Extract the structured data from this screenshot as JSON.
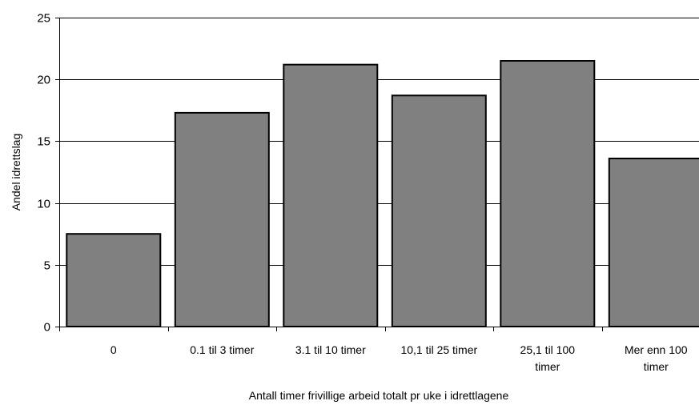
{
  "chart_data": {
    "type": "bar",
    "categories": [
      "0",
      "0.1 til 3 timer",
      "3.1 til 10 timer",
      "10,1 til 25 timer",
      "25,1 til 100 timer",
      "Mer enn 100 timer"
    ],
    "category_lines": [
      [
        "0"
      ],
      [
        "0.1 til 3 timer"
      ],
      [
        "3.1 til 10 timer"
      ],
      [
        "10,1 til 25 timer"
      ],
      [
        "25,1 til 100",
        "timer"
      ],
      [
        "Mer enn 100",
        "timer"
      ]
    ],
    "values": [
      7.5,
      17.3,
      21.2,
      18.7,
      21.5,
      13.6
    ],
    "xlabel": "Antall timer frivillige arbeid totalt pr uke i idrettlagene",
    "ylabel": "Andel idrettslag",
    "ylim": [
      0,
      25
    ],
    "yticks": [
      0,
      5,
      10,
      15,
      20,
      25
    ],
    "grid": true,
    "legend": "none",
    "colors": {
      "bar_fill": "#808080",
      "bar_stroke": "#000000",
      "grid": "#000000"
    }
  }
}
